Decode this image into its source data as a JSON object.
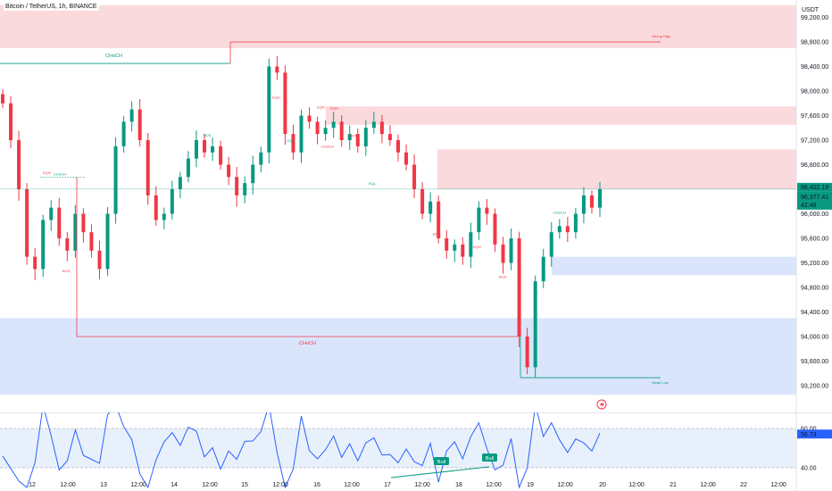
{
  "header": {
    "title": "Bitcoin / TetherUS, 1h, BINANCE",
    "currency": "USDT"
  },
  "colors": {
    "up": "#089981",
    "down": "#f23645",
    "supply_zone": "#f9d3d6",
    "demand_zone": "#d4e1fb",
    "rsi_line": "#2962ff",
    "rsi_band": "#e8f0fb",
    "price_badge": "#089981"
  },
  "price_axis": {
    "ticks": [
      "99,200.00",
      "98,800.00",
      "98,400.00",
      "98,000.00",
      "97,600.00",
      "97,200.00",
      "96,800.00",
      "96,400.00",
      "96,000.00",
      "95,600.00",
      "95,200.00",
      "94,800.00",
      "94,400.00",
      "94,000.00",
      "93,600.00",
      "93,200.00"
    ],
    "current_price": "96,402.19",
    "current_price2": "96,377.41",
    "countdown": "42:48"
  },
  "rsi": {
    "value": "56.73",
    "ticks": [
      "60.00",
      "40.00"
    ],
    "bull_label": "Bull"
  },
  "time_axis": [
    "12",
    "12:00",
    "13",
    "12:00",
    "14",
    "12:00",
    "15",
    "12:00",
    "16",
    "12:00",
    "17",
    "12:00",
    "18",
    "12:00",
    "19",
    "12:00",
    "20",
    "12:00",
    "21",
    "12:00",
    "22",
    "12:00"
  ],
  "annotations": {
    "choch": "CHoCH",
    "bos": "BOS",
    "eqh": "EQH",
    "eql": "EQL",
    "strong_high": "Strong High",
    "weak_low": "Weak Low"
  },
  "chart_data": {
    "type": "candlestick",
    "title": "Bitcoin / TetherUS, 1h, BINANCE",
    "ylabel": "USDT",
    "ylim": [
      93000,
      99400
    ],
    "y_ticks": [
      99200,
      98800,
      98400,
      98000,
      97600,
      97200,
      96800,
      96400,
      96000,
      95600,
      95200,
      94800,
      94400,
      94000,
      93600,
      93200
    ],
    "x_labels": [
      "12",
      "12:00",
      "13",
      "12:00",
      "14",
      "12:00",
      "15",
      "12:00",
      "16",
      "12:00",
      "17",
      "12:00",
      "18",
      "12:00",
      "19",
      "12:00",
      "20",
      "12:00",
      "21",
      "12:00",
      "22",
      "12:00"
    ],
    "last_price": 96402.19,
    "bid_price": 96377.41,
    "approx_closes": [
      97800,
      97200,
      96400,
      95300,
      95100,
      95900,
      96100,
      95600,
      95400,
      96000,
      95700,
      95400,
      95100,
      96000,
      97100,
      97500,
      97700,
      97200,
      96300,
      95900,
      96000,
      96400,
      96600,
      96900,
      97200,
      97000,
      97100,
      96800,
      96600,
      96300,
      96500,
      96800,
      97000,
      98400,
      98300,
      97300,
      97000,
      97600,
      97500,
      97300,
      97400,
      97500,
      97200,
      97300,
      97100,
      97400,
      97500,
      97300,
      97200,
      97000,
      96800,
      96400,
      96000,
      96200,
      95600,
      95400,
      95500,
      95300,
      95700,
      96100,
      96000,
      95500,
      95200,
      95600,
      94000,
      93500,
      94900,
      95300,
      95700,
      95800,
      95700,
      96000,
      96300,
      96100,
      96400
    ],
    "zones": [
      {
        "type": "supply",
        "from": 99400,
        "to": 98700
      },
      {
        "type": "supply",
        "from": 97750,
        "to": 97450
      },
      {
        "type": "supply",
        "from": 97050,
        "to": 96400
      },
      {
        "type": "demand",
        "from": 95300,
        "to": 95000
      },
      {
        "type": "demand",
        "from": 94300,
        "to": 93050
      }
    ],
    "levels": [
      {
        "label": "Strong High",
        "price": 98800
      },
      {
        "label": "Weak Low",
        "price": 93330
      },
      {
        "label": "CHoCH",
        "price": 98450
      },
      {
        "label": "CHoCH",
        "price": 94000
      },
      {
        "label": "CHoCH",
        "price": 96600
      }
    ],
    "rsi": {
      "value": 56.73,
      "ticks": [
        60,
        40
      ],
      "signals": [
        "Bull",
        "Bull"
      ]
    }
  }
}
